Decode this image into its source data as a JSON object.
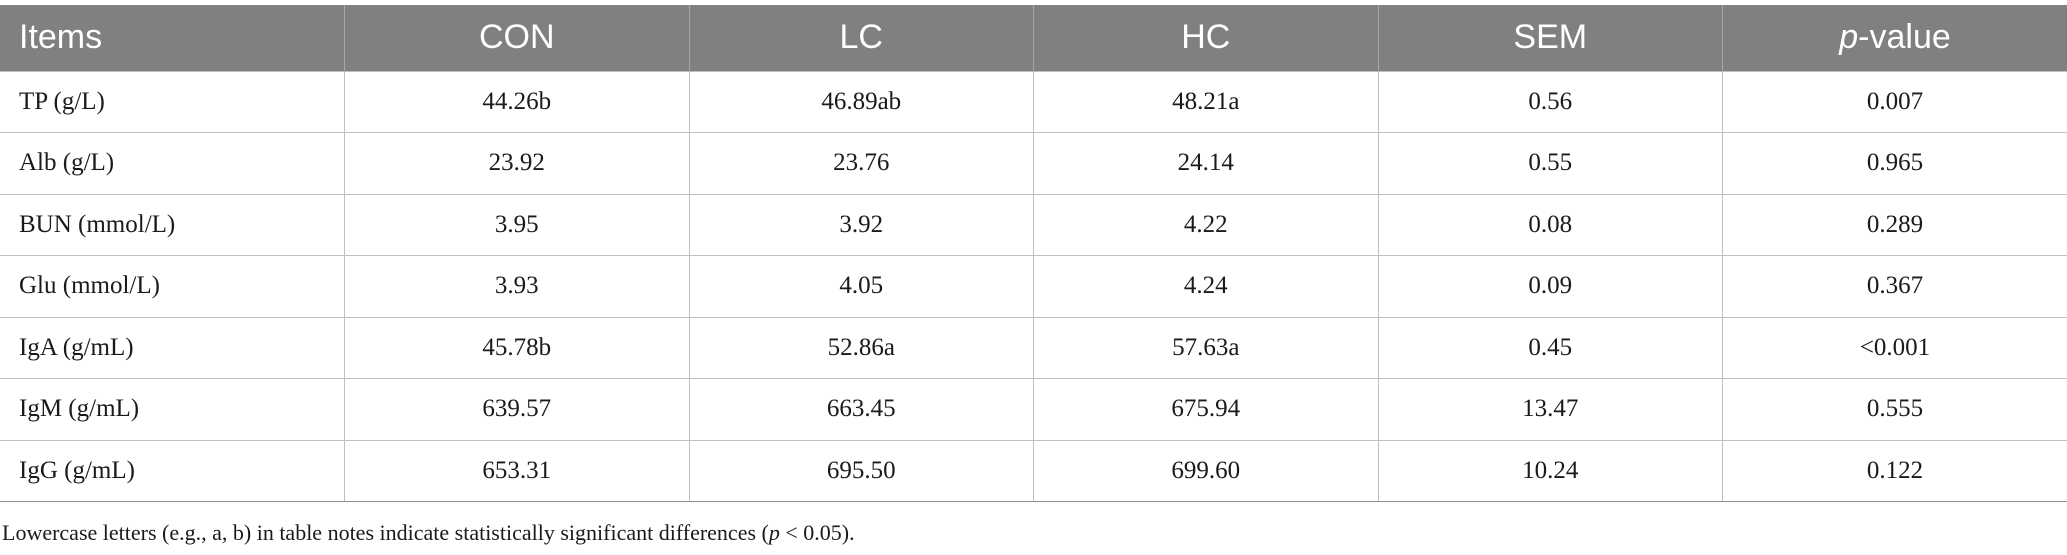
{
  "table": {
    "headers": {
      "items": "Items",
      "con": "CON",
      "lc": "LC",
      "hc": "HC",
      "sem": "SEM",
      "p_prefix": "p",
      "p_suffix": "-value"
    },
    "rows": [
      {
        "item": "TP (g/L)",
        "con": "44.26b",
        "lc": "46.89ab",
        "hc": "48.21a",
        "sem": "0.56",
        "p": "0.007"
      },
      {
        "item": "Alb (g/L)",
        "con": "23.92",
        "lc": "23.76",
        "hc": "24.14",
        "sem": "0.55",
        "p": "0.965"
      },
      {
        "item": "BUN (mmol/L)",
        "con": "3.95",
        "lc": "3.92",
        "hc": "4.22",
        "sem": "0.08",
        "p": "0.289"
      },
      {
        "item": "Glu (mmol/L)",
        "con": "3.93",
        "lc": "4.05",
        "hc": "4.24",
        "sem": "0.09",
        "p": "0.367"
      },
      {
        "item": "IgA (g/mL)",
        "con": "45.78b",
        "lc": "52.86a",
        "hc": "57.63a",
        "sem": "0.45",
        "p": "<0.001"
      },
      {
        "item": "IgM (g/mL)",
        "con": "639.57",
        "lc": "663.45",
        "hc": "675.94",
        "sem": "13.47",
        "p": "0.555"
      },
      {
        "item": "IgG (g/mL)",
        "con": "653.31",
        "lc": "695.50",
        "hc": "699.60",
        "sem": "10.24",
        "p": "0.122"
      }
    ]
  },
  "note": {
    "before": "Lowercase letters (e.g., a, b) in table notes indicate statistically significant differences (",
    "p": "p",
    "after": " < 0.05)."
  }
}
